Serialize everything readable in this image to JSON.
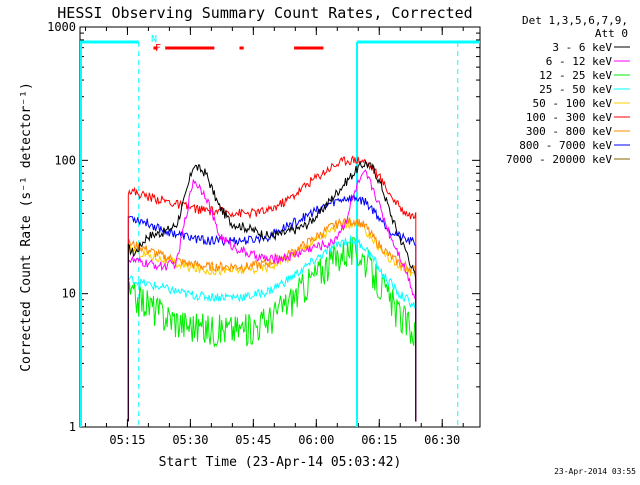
{
  "chart_data": {
    "type": "line",
    "title": "HESSI Observing Summary Count Rates, Corrected",
    "xlabel": "Start Time (23-Apr-14 05:03:42)",
    "ylabel": "Corrected Count Rate (s⁻¹ detector⁻¹)",
    "y_scale": "log",
    "ylim": [
      1,
      1000
    ],
    "y_ticks": [
      "1",
      "10",
      "100",
      "1000"
    ],
    "x_unit": "minutes after 05:03:42",
    "x_range": [
      0,
      95.3
    ],
    "x_ticks": [
      {
        "label": "05:15",
        "value": 11.3
      },
      {
        "label": "05:30",
        "value": 26.3
      },
      {
        "label": "05:45",
        "value": 41.3
      },
      {
        "label": "06:00",
        "value": 56.3
      },
      {
        "label": "06:15",
        "value": 71.3
      },
      {
        "label": "06:30",
        "value": 86.3
      }
    ],
    "legend_header": [
      "Det 1,3,5,6,7,9,",
      "Att 0"
    ],
    "legend_placement": "top-right",
    "series": [
      {
        "name": "3 - 6 keV",
        "color": "#000000",
        "x": [
          11.5,
          13,
          16,
          20,
          23,
          25,
          27,
          30,
          33,
          36,
          40,
          45,
          48,
          51,
          54,
          57,
          60,
          63,
          66,
          68,
          70,
          72,
          74,
          76,
          78,
          80
        ],
        "values": [
          22,
          20,
          27,
          29,
          33,
          52,
          92,
          80,
          46,
          34,
          31,
          27,
          28,
          30,
          33,
          40,
          52,
          67,
          86,
          96,
          86,
          62,
          40,
          27,
          20,
          13
        ]
      },
      {
        "name": "6 - 12 keV",
        "color": "#ff00ff",
        "x": [
          11.5,
          15,
          20,
          23,
          25,
          27,
          30,
          33,
          36,
          40,
          45,
          50,
          55,
          60,
          63,
          66,
          68,
          70,
          72,
          74,
          76,
          78,
          80
        ],
        "values": [
          18,
          17,
          16,
          17,
          35,
          72,
          55,
          28,
          23,
          20,
          18,
          19,
          22,
          24,
          33,
          65,
          80,
          60,
          40,
          27,
          20,
          14,
          9
        ]
      },
      {
        "name": "12 - 25 keV",
        "color": "#00ee00",
        "x": [
          11.5,
          15,
          20,
          25,
          30,
          35,
          40,
          45,
          50,
          55,
          60,
          63,
          66,
          68,
          70,
          72,
          74,
          76,
          78,
          80
        ],
        "values": [
          10,
          9,
          7,
          6,
          5.5,
          5.5,
          5.5,
          6.5,
          9,
          13,
          18,
          21,
          21,
          18,
          14,
          11,
          9,
          7,
          6,
          5
        ]
      },
      {
        "name": "25 - 50 keV",
        "color": "#00ffff",
        "x": [
          11.5,
          15,
          20,
          25,
          30,
          35,
          40,
          45,
          50,
          55,
          60,
          63,
          66,
          68,
          70,
          72,
          74,
          76,
          78,
          80
        ],
        "values": [
          13,
          12,
          11,
          10,
          9.5,
          9.5,
          9.5,
          10.5,
          13,
          17,
          22,
          25,
          25,
          22,
          18,
          14,
          12,
          10,
          9,
          8
        ]
      },
      {
        "name": "50 - 100 keV",
        "color": "#ffcc00",
        "x": [
          11.5,
          15,
          20,
          25,
          30,
          35,
          40,
          45,
          50,
          55,
          60,
          63,
          66,
          68,
          70,
          72,
          74,
          76,
          78,
          80
        ],
        "values": [
          22,
          20,
          18,
          16,
          15,
          15,
          15,
          16,
          19,
          24,
          30,
          33,
          33,
          30,
          25,
          21,
          18,
          16,
          15,
          14
        ]
      },
      {
        "name": "100 - 300 keV",
        "color": "#ff0000",
        "x": [
          11.5,
          15,
          20,
          25,
          30,
          35,
          40,
          45,
          50,
          55,
          60,
          63,
          66,
          68,
          70,
          72,
          74,
          76,
          78,
          80
        ],
        "values": [
          60,
          55,
          50,
          45,
          42,
          41,
          40,
          42,
          52,
          70,
          90,
          100,
          102,
          98,
          85,
          70,
          55,
          45,
          40,
          38
        ]
      },
      {
        "name": "300 - 800 keV",
        "color": "#ff8800",
        "x": [
          11.5,
          15,
          20,
          25,
          30,
          35,
          40,
          45,
          50,
          55,
          60,
          63,
          66,
          68,
          70,
          72,
          74,
          76,
          78,
          80
        ],
        "values": [
          24,
          22,
          19,
          17,
          16,
          16,
          16,
          17,
          20,
          25,
          32,
          35,
          35,
          32,
          26,
          22,
          19,
          17,
          16,
          15
        ]
      },
      {
        "name": "800 - 7000 keV",
        "color": "#0000ff",
        "x": [
          11.5,
          15,
          20,
          25,
          30,
          35,
          40,
          45,
          50,
          55,
          60,
          63,
          66,
          68,
          70,
          72,
          74,
          76,
          78,
          80
        ],
        "values": [
          38,
          35,
          30,
          27,
          25,
          25,
          25,
          27,
          33,
          40,
          48,
          52,
          52,
          49,
          42,
          35,
          30,
          27,
          25,
          24
        ]
      },
      {
        "name": "7000 - 20000 keV",
        "color": "#886600",
        "x": [],
        "values": []
      }
    ],
    "annotations": [
      {
        "text": "N",
        "color": "#00ffff"
      },
      {
        "text": "F",
        "color": "#ff0000"
      }
    ],
    "night_bars": [
      [
        0,
        14
      ],
      [
        66,
        95.3
      ]
    ],
    "saa_dashed_lines": [
      14,
      66,
      90
    ],
    "flare_bars": [
      [
        20.3,
        32
      ],
      [
        38,
        39
      ],
      [
        51,
        58
      ]
    ],
    "flare_marker": [
      17.5,
      18.5
    ],
    "footer_date": "23-Apr-2014 03:55"
  }
}
